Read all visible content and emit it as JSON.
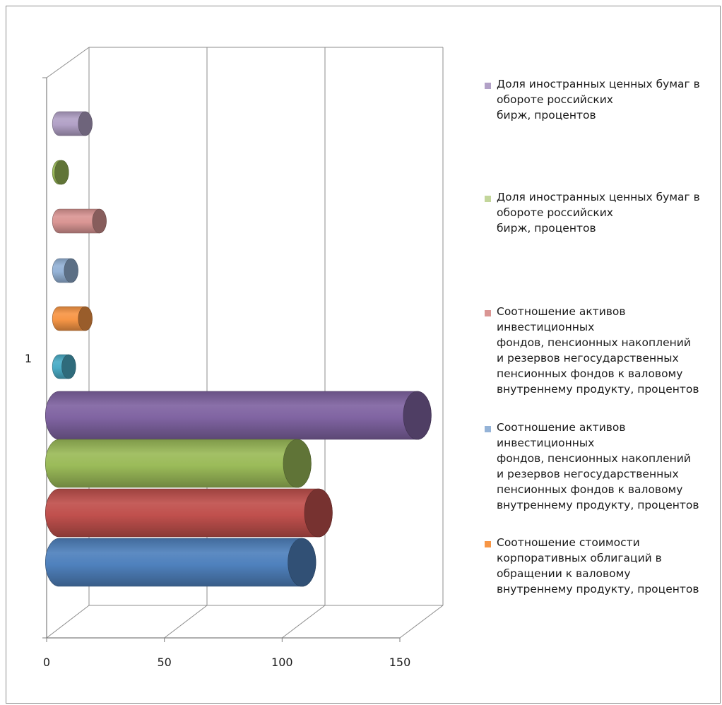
{
  "colors": {
    "frame": "#8c8c8c",
    "grid": "#8c8c8c",
    "axis": "#7f7f7f"
  },
  "chart_data": {
    "type": "bar",
    "orientation": "horizontal",
    "style": "3d-cylinder",
    "categories": [
      "1"
    ],
    "xlim": [
      0,
      150
    ],
    "x_ticks": [
      "0",
      "50",
      "100",
      "150"
    ],
    "grid": true,
    "legend_position": "right",
    "series": [
      {
        "name": "",
        "value": 103,
        "color": "#4f81bd"
      },
      {
        "name": "",
        "value": 110,
        "color": "#c0504d"
      },
      {
        "name": "",
        "value": 101,
        "color": "#9bbb59"
      },
      {
        "name": "",
        "value": 152,
        "color": "#8064a2"
      },
      {
        "name": "",
        "value": 4,
        "color": "#4bacc6"
      },
      {
        "name": "Соотношение стоимости корпоративных облигаций в обращении к валовому внутреннему продукту, процентов",
        "value": 11,
        "color": "#f79646"
      },
      {
        "name": "Соотношение активов инвестиционных фондов, пенсионных накоплений и резервов негосударственных пенсионных фондов к валовому внутреннему продукту, процентов",
        "value": 5,
        "color": "#95b3d7"
      },
      {
        "name": "Соотношение активов инвестиционных фондов, пенсионных накоплений и резервов негосударственных пенсионных фондов к валовому внутреннему продукту, процентов",
        "value": 17,
        "color": "#da9694"
      },
      {
        "name": "Доля иностранных ценных бумаг в обороте российских бирж, процентов",
        "value": 1,
        "color": "#9bbb59"
      },
      {
        "name": "Доля иностранных ценных бумаг в обороте российских бирж, процентов",
        "value": 11,
        "color": "#b2a1c7"
      }
    ],
    "legend": [
      {
        "text": "Доля иностранных ценных бумаг в\nобороте российских\nбирж, процентов",
        "color": "#b2a1c7"
      },
      {
        "text": "Доля иностранных ценных бумаг в\nобороте российских\nбирж, процентов",
        "color": "#c3d69b"
      },
      {
        "text": "Соотношение активов\nинвестиционных\nфондов, пенсионных накоплений\nи резервов негосударственных\nпенсионных фондов к валовому\nвнутреннему продукту, процентов",
        "color": "#da9694"
      },
      {
        "text": "Соотношение активов\nинвестиционных\nфондов, пенсионных накоплений\nи резервов негосударственных\nпенсионных фондов к валовому\nвнутреннему продукту, процентов",
        "color": "#95b3d7"
      },
      {
        "text": "Соотношение стоимости\nкорпоративных облигаций в\nобращении к валовому\nвнутреннему продукту, процентов",
        "color": "#f79646"
      }
    ]
  }
}
